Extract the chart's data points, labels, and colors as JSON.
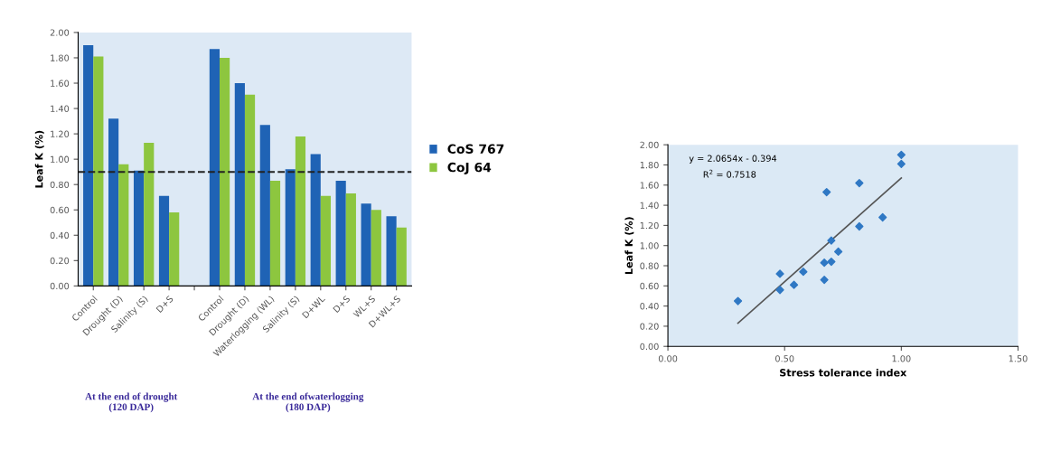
{
  "chart_data": [
    {
      "type": "bar",
      "ylabel": "Leaf K (%)",
      "categories": [
        "Control",
        "Drought (D)",
        "Salinity (S)",
        "D+S",
        null,
        "Control",
        "Drought (D)",
        "Waterlogging (WL)",
        "Salinity (S)",
        "D+WL",
        "D+S",
        "WL+S",
        "D+WL+S"
      ],
      "series": [
        {
          "name": "CoS 767",
          "color": "#1f63b5",
          "values": [
            1.9,
            1.32,
            0.91,
            0.71,
            null,
            1.87,
            1.6,
            1.27,
            0.92,
            1.04,
            0.83,
            0.65,
            0.55
          ]
        },
        {
          "name": "CoJ 64",
          "color": "#8dc63f",
          "values": [
            1.81,
            0.96,
            1.13,
            0.58,
            null,
            1.8,
            1.51,
            0.83,
            1.18,
            0.71,
            0.73,
            0.6,
            0.46
          ]
        }
      ],
      "ylim": [
        0,
        2.0
      ],
      "yticks": [
        {
          "value": 0,
          "label": "0.00"
        },
        {
          "value": 0.2,
          "label": "0.20"
        },
        {
          "value": 0.4,
          "label": "0.40"
        },
        {
          "value": 0.6,
          "label": "0.60"
        },
        {
          "value": 0.8,
          "label": "0.80"
        },
        {
          "value": 1.0,
          "label": "1.00"
        },
        {
          "value": 1.2,
          "label": "1.20"
        },
        {
          "value": 1.4,
          "label": "1.40"
        },
        {
          "value": 1.6,
          "label": "1.60"
        },
        {
          "value": 1.8,
          "label": "1.80"
        },
        {
          "value": 2.0,
          "label": "2.00"
        }
      ],
      "ref_lines": [
        {
          "axis": "y",
          "value": 0.9,
          "color": "#222222",
          "line_style": "dashed"
        }
      ],
      "annotations": [
        "At the end of drought\n(120 DAP)",
        "At the end ofwaterlogging\n(180 DAP)"
      ],
      "legend": "right",
      "grid": false
    },
    {
      "type": "scatter",
      "xlabel": "Stress tolerance index",
      "ylabel": "Leaf K (%)",
      "series": [
        {
          "type": "scatter",
          "color": "#2f78c4",
          "marker": "diamond",
          "x": [
            1.0,
            1.0,
            0.82,
            0.68,
            0.92,
            0.82,
            0.7,
            0.73,
            0.7,
            0.67,
            0.48,
            0.58,
            0.67,
            0.54,
            0.48,
            0.3
          ],
          "values": [
            1.9,
            1.81,
            1.62,
            1.53,
            1.28,
            1.19,
            1.05,
            0.94,
            0.84,
            0.83,
            0.72,
            0.74,
            0.66,
            0.61,
            0.56,
            0.45
          ]
        },
        {
          "type": "line",
          "color": "#555555",
          "line_style": "solid",
          "x": [
            0.3,
            1.0
          ],
          "values": [
            0.23,
            1.67
          ]
        }
      ],
      "xlim": [
        0,
        1.5
      ],
      "xticks": [
        {
          "value": 0,
          "label": "0.00"
        },
        {
          "value": 0.5,
          "label": "0.50"
        },
        {
          "value": 1.0,
          "label": "1.00"
        },
        {
          "value": 1.5,
          "label": "1.50"
        }
      ],
      "ylim": [
        0,
        2.0
      ],
      "yticks": [
        {
          "value": 0,
          "label": "0.00"
        },
        {
          "value": 0.2,
          "label": "0.20"
        },
        {
          "value": 0.4,
          "label": "0.40"
        },
        {
          "value": 0.6,
          "label": "0.60"
        },
        {
          "value": 0.8,
          "label": "0.80"
        },
        {
          "value": 1.0,
          "label": "1.00"
        },
        {
          "value": 1.2,
          "label": "1.20"
        },
        {
          "value": 1.4,
          "label": "1.40"
        },
        {
          "value": 1.6,
          "label": "1.60"
        },
        {
          "value": 1.8,
          "label": "1.80"
        },
        {
          "value": 2.0,
          "label": "2.00"
        }
      ],
      "annotations": [
        "y = 2.0654x - 0.394",
        "R$^{2}$ = 0.7518"
      ],
      "grid": false
    }
  ]
}
